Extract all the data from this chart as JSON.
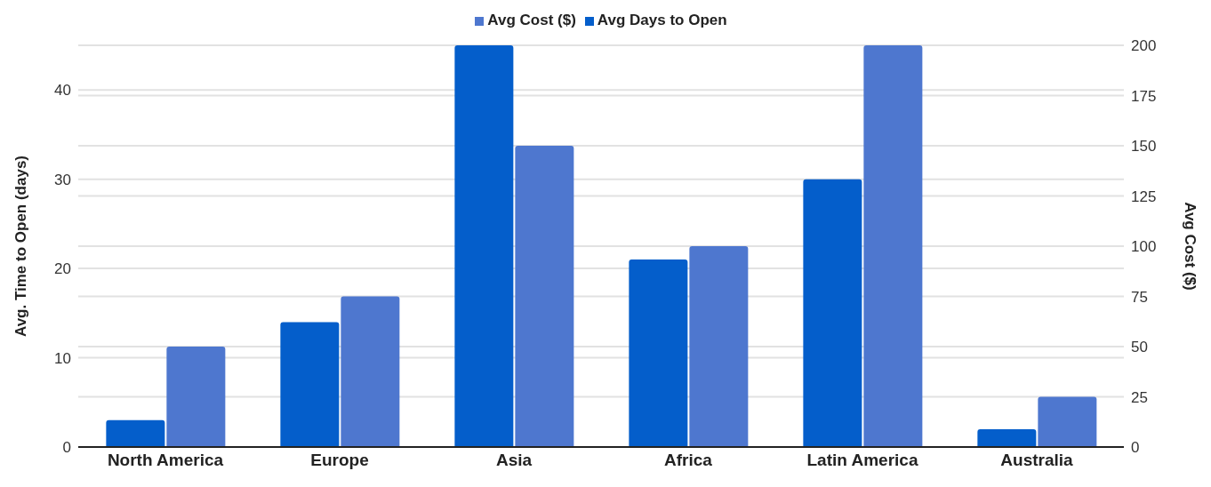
{
  "chart_data": {
    "type": "bar",
    "categories": [
      "North America",
      "Europe",
      "Asia",
      "Africa",
      "Latin America",
      "Australia"
    ],
    "series": [
      {
        "name": "Avg Days to Open",
        "color": "#045ecb",
        "values": [
          3,
          14,
          45,
          21,
          30,
          2
        ]
      },
      {
        "name": "Avg Cost ($)",
        "color": "#4e77cf",
        "values": [
          50,
          75,
          150,
          100,
          200,
          25
        ],
        "axis": "y2"
      }
    ],
    "ylabel": "Avg. Time to Open (days)",
    "y2label": "Avg Cost ($)",
    "ylim": [
      0,
      45
    ],
    "yticks": [
      0,
      10,
      20,
      30,
      40
    ],
    "y2lim": [
      0,
      200
    ],
    "y2ticks": [
      0,
      25,
      50,
      75,
      100,
      125,
      150,
      175,
      200
    ],
    "grid": "y",
    "legend": "top"
  }
}
